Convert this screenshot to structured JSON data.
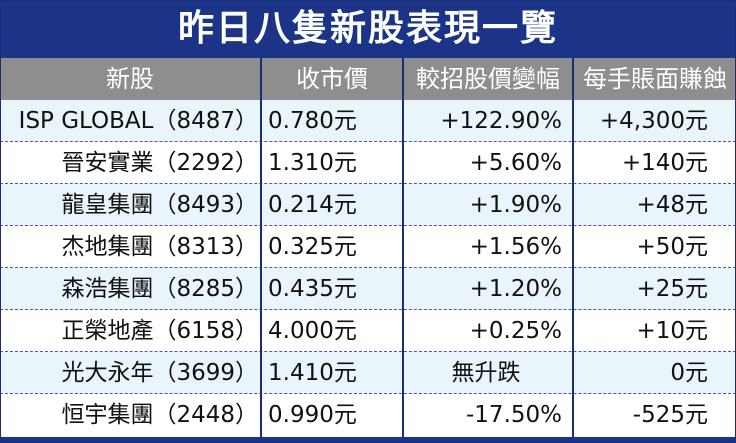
{
  "title": "昨日八隻新股表現一覽",
  "headers": [
    "新股",
    "收市價",
    "較招股價變幅",
    "每手賬面賺蝕"
  ],
  "rows": [
    {
      "stock": "ISP GLOBAL（8487）",
      "close": "0.780元",
      "change": "+122.90%",
      "pnl": "+4,300元"
    },
    {
      "stock": "晉安實業（2292）",
      "close": "1.310元",
      "change": "+5.60%",
      "pnl": "+140元"
    },
    {
      "stock": "龍皇集團（8493）",
      "close": "0.214元",
      "change": "+1.90%",
      "pnl": "+48元"
    },
    {
      "stock": "杰地集團（8313）",
      "close": "0.325元",
      "change": "+1.56%",
      "pnl": "+50元"
    },
    {
      "stock": "森浩集團（8285）",
      "close": "0.435元",
      "change": "+1.20%",
      "pnl": "+25元"
    },
    {
      "stock": "正榮地產（6158）",
      "close": "4.000元",
      "change": "+0.25%",
      "pnl": "+10元"
    },
    {
      "stock": "光大永年（3699）",
      "close": "1.410元",
      "change": "無升跌",
      "pnl": "0元"
    },
    {
      "stock": "恒宇集團（2448）",
      "close": "0.990元",
      "change": "-17.50%",
      "pnl": "-525元"
    }
  ],
  "colors": {
    "title_bg": "#1b3488",
    "header_bg": "#8e8e8e",
    "row_alt": "#eaf4fb"
  }
}
